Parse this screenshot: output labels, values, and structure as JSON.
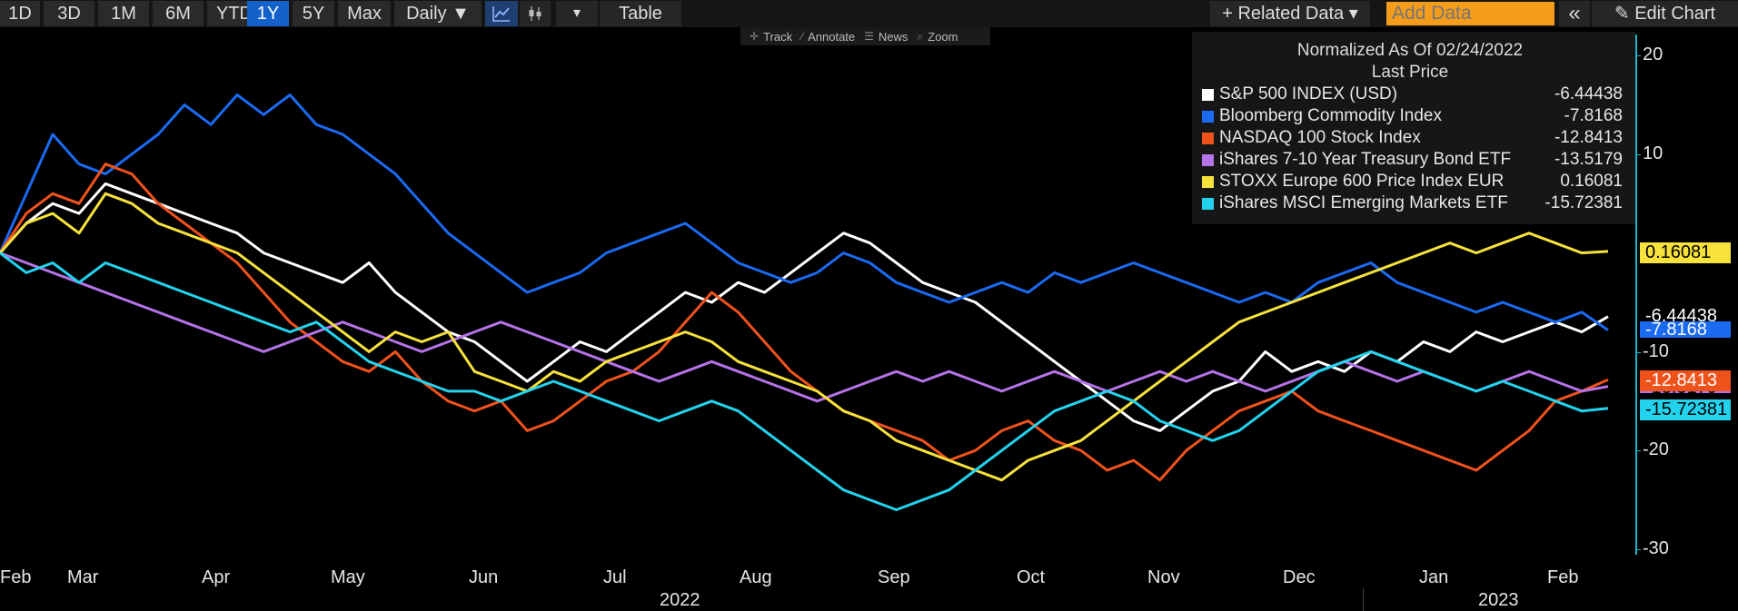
{
  "toolbar": {
    "ranges": [
      "1D",
      "3D",
      "1M",
      "6M",
      "YTD",
      "1Y",
      "5Y",
      "Max"
    ],
    "active_range": "1Y",
    "interval": "Daily ▼",
    "chart_icons": [
      "line-chart-icon",
      "candlestick-icon"
    ],
    "dropdown_arrow": "▾",
    "table": "Table",
    "related_data": "+ Related Data ▾",
    "add_data_placeholder": "Add Data",
    "collapse": "«",
    "edit_chart": "Edit Chart"
  },
  "mini_toolbar": {
    "track": "Track",
    "annotate": "Annotate",
    "news": "News",
    "zoom": "Zoom"
  },
  "legend": {
    "header1": "Normalized As Of 02/24/2022",
    "header2": "Last Price"
  },
  "colors": {
    "spx": "#ffffff",
    "bcom": "#1a6af2",
    "ndx": "#f0521c",
    "ief": "#b673e8",
    "sxxp": "#f7e23b",
    "eem": "#23d3ee",
    "axis": "#1fb3c7"
  },
  "chart_data": {
    "type": "line",
    "y_axis": {
      "position": "right",
      "ticks": [
        20,
        10,
        -10,
        -20,
        -30
      ],
      "ylim": [
        -31,
        23
      ]
    },
    "x_axis": {
      "months": [
        "Feb",
        "Mar",
        "Apr",
        "May",
        "Jun",
        "Jul",
        "Aug",
        "Sep",
        "Oct",
        "Nov",
        "Dec",
        "Jan",
        "Feb"
      ],
      "years": [
        "2022",
        "2023"
      ]
    },
    "series": [
      {
        "key": "spx",
        "name": "S&P 500 INDEX (USD)",
        "last": "-6.44438",
        "values": [
          0,
          3,
          5,
          4,
          7,
          6,
          5,
          4,
          3,
          2,
          0,
          -1,
          -2,
          -3,
          -1,
          -4,
          -6,
          -8,
          -9,
          -11,
          -13,
          -11,
          -9,
          -10,
          -8,
          -6,
          -4,
          -5,
          -3,
          -4,
          -2,
          0,
          2,
          1,
          -1,
          -3,
          -4,
          -5,
          -7,
          -9,
          -11,
          -13,
          -15,
          -17,
          -18,
          -16,
          -14,
          -13,
          -10,
          -12,
          -11,
          -12,
          -10,
          -11,
          -9,
          -10,
          -8,
          -9,
          -8,
          -7,
          -8,
          -6.44438
        ]
      },
      {
        "key": "bcom",
        "name": "Bloomberg Commodity Index",
        "last": "-7.8168",
        "values": [
          0,
          6,
          12,
          9,
          8,
          10,
          12,
          15,
          13,
          16,
          14,
          16,
          13,
          12,
          10,
          8,
          5,
          2,
          0,
          -2,
          -4,
          -3,
          -2,
          0,
          1,
          2,
          3,
          1,
          -1,
          -2,
          -3,
          -2,
          0,
          -1,
          -3,
          -4,
          -5,
          -4,
          -3,
          -4,
          -2,
          -3,
          -2,
          -1,
          -2,
          -3,
          -4,
          -5,
          -4,
          -5,
          -3,
          -2,
          -1,
          -3,
          -4,
          -5,
          -6,
          -5,
          -6,
          -7,
          -6,
          -7.8168
        ]
      },
      {
        "key": "ndx",
        "name": "NASDAQ 100 Stock Index",
        "last": "-12.8413",
        "values": [
          0,
          4,
          6,
          5,
          9,
          8,
          5,
          3,
          1,
          -1,
          -4,
          -7,
          -9,
          -11,
          -12,
          -10,
          -13,
          -15,
          -16,
          -15,
          -18,
          -17,
          -15,
          -13,
          -12,
          -10,
          -7,
          -4,
          -6,
          -9,
          -12,
          -14,
          -16,
          -17,
          -18,
          -19,
          -21,
          -20,
          -18,
          -17,
          -19,
          -20,
          -22,
          -21,
          -23,
          -20,
          -18,
          -16,
          -15,
          -14,
          -16,
          -17,
          -18,
          -19,
          -20,
          -21,
          -22,
          -20,
          -18,
          -15,
          -14,
          -12.8413
        ]
      },
      {
        "key": "ief",
        "name": "iShares 7-10 Year Treasury Bond ETF",
        "last": "-13.5179",
        "values": [
          0,
          -1,
          -2,
          -3,
          -4,
          -5,
          -6,
          -7,
          -8,
          -9,
          -10,
          -9,
          -8,
          -7,
          -8,
          -9,
          -10,
          -9,
          -8,
          -7,
          -8,
          -9,
          -10,
          -11,
          -12,
          -13,
          -12,
          -11,
          -12,
          -13,
          -14,
          -15,
          -14,
          -13,
          -12,
          -13,
          -12,
          -13,
          -14,
          -13,
          -12,
          -13,
          -14,
          -13,
          -12,
          -13,
          -12,
          -13,
          -14,
          -13,
          -12,
          -11,
          -12,
          -13,
          -12,
          -13,
          -14,
          -13,
          -12,
          -13,
          -14,
          -13.5179
        ]
      },
      {
        "key": "sxxp",
        "name": "STOXX Europe 600 Price Index EUR",
        "last": "0.16081",
        "values": [
          0,
          3,
          4,
          2,
          6,
          5,
          3,
          2,
          1,
          0,
          -2,
          -4,
          -6,
          -8,
          -10,
          -8,
          -9,
          -8,
          -12,
          -13,
          -14,
          -12,
          -13,
          -11,
          -10,
          -9,
          -8,
          -9,
          -11,
          -12,
          -13,
          -14,
          -16,
          -17,
          -19,
          -20,
          -21,
          -22,
          -23,
          -21,
          -20,
          -19,
          -17,
          -15,
          -13,
          -11,
          -9,
          -7,
          -6,
          -5,
          -4,
          -3,
          -2,
          -1,
          0,
          1,
          0,
          1,
          2,
          1,
          0,
          0.16081
        ]
      },
      {
        "key": "eem",
        "name": "iShares MSCI Emerging Markets ETF",
        "last": "-15.72381",
        "values": [
          0,
          -2,
          -1,
          -3,
          -1,
          -2,
          -3,
          -4,
          -5,
          -6,
          -7,
          -8,
          -7,
          -9,
          -11,
          -12,
          -13,
          -14,
          -14,
          -15,
          -14,
          -13,
          -14,
          -15,
          -16,
          -17,
          -16,
          -15,
          -16,
          -18,
          -20,
          -22,
          -24,
          -25,
          -26,
          -25,
          -24,
          -22,
          -20,
          -18,
          -16,
          -15,
          -14,
          -15,
          -17,
          -18,
          -19,
          -18,
          -16,
          -14,
          -12,
          -11,
          -10,
          -11,
          -12,
          -13,
          -14,
          -13,
          -14,
          -15,
          -16,
          -15.72381
        ]
      }
    ]
  }
}
